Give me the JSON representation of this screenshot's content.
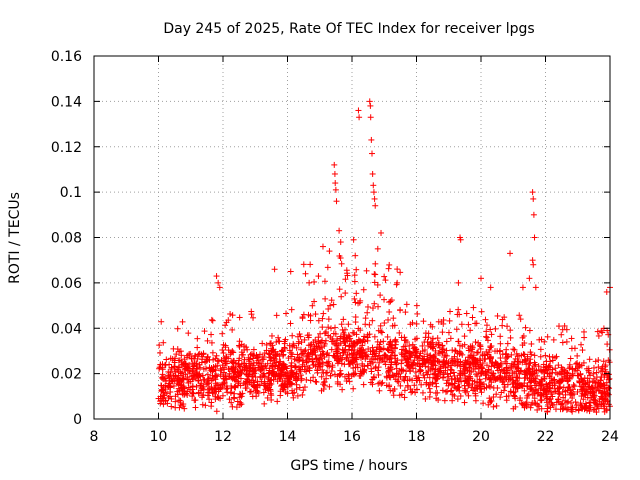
{
  "chart_data": {
    "type": "scatter",
    "title": "Day 245 of 2025, Rate Of TEC Index for receiver lpgs",
    "xlabel": "GPS time / hours",
    "ylabel": "ROTI / TECUs",
    "xlim": [
      8,
      24
    ],
    "ylim": [
      0,
      0.16
    ],
    "x_ticks": [
      "8",
      "10",
      "12",
      "14",
      "16",
      "18",
      "20",
      "22",
      "24"
    ],
    "y_ticks": [
      "0",
      "0.02",
      "0.04",
      "0.06",
      "0.08",
      "0.1",
      "0.12",
      "0.14",
      "0.16"
    ],
    "grid": true,
    "marker": "+",
    "color": "#ff0000",
    "series": [
      {
        "name": "ROTI",
        "baseline": [
          [
            10.0,
            0.016
          ],
          [
            11.0,
            0.017
          ],
          [
            12.0,
            0.018
          ],
          [
            13.0,
            0.02
          ],
          [
            14.0,
            0.022
          ],
          [
            15.0,
            0.026
          ],
          [
            16.0,
            0.028
          ],
          [
            17.0,
            0.025
          ],
          [
            18.0,
            0.023
          ],
          [
            19.0,
            0.022
          ],
          [
            20.0,
            0.021
          ],
          [
            21.0,
            0.019
          ],
          [
            22.0,
            0.015
          ],
          [
            23.0,
            0.012
          ],
          [
            24.0,
            0.012
          ]
        ],
        "spikes": [
          [
            15.45,
            0.112
          ],
          [
            15.47,
            0.108
          ],
          [
            15.5,
            0.101
          ],
          [
            15.52,
            0.096
          ],
          [
            15.48,
            0.104
          ],
          [
            15.6,
            0.083
          ],
          [
            15.65,
            0.078
          ],
          [
            16.2,
            0.136
          ],
          [
            16.22,
            0.133
          ],
          [
            16.55,
            0.14
          ],
          [
            16.57,
            0.138
          ],
          [
            16.58,
            0.133
          ],
          [
            16.6,
            0.123
          ],
          [
            16.62,
            0.117
          ],
          [
            16.64,
            0.108
          ],
          [
            16.66,
            0.103
          ],
          [
            16.68,
            0.1
          ],
          [
            16.7,
            0.097
          ],
          [
            16.72,
            0.094
          ],
          [
            16.9,
            0.082
          ],
          [
            19.35,
            0.08
          ],
          [
            19.37,
            0.079
          ],
          [
            21.6,
            0.1
          ],
          [
            21.62,
            0.097
          ],
          [
            21.64,
            0.09
          ],
          [
            21.66,
            0.08
          ],
          [
            21.6,
            0.07
          ],
          [
            21.62,
            0.068
          ],
          [
            11.8,
            0.063
          ],
          [
            11.85,
            0.06
          ],
          [
            11.9,
            0.058
          ],
          [
            13.6,
            0.066
          ],
          [
            14.1,
            0.065
          ],
          [
            15.1,
            0.076
          ],
          [
            15.3,
            0.074
          ],
          [
            16.05,
            0.079
          ],
          [
            16.1,
            0.072
          ],
          [
            16.8,
            0.075
          ],
          [
            17.4,
            0.06
          ],
          [
            19.3,
            0.06
          ],
          [
            20.0,
            0.062
          ],
          [
            20.3,
            0.058
          ],
          [
            20.9,
            0.073
          ],
          [
            21.3,
            0.058
          ],
          [
            21.5,
            0.062
          ],
          [
            21.7,
            0.058
          ],
          [
            24.0,
            0.058
          ],
          [
            23.9,
            0.056
          ]
        ]
      }
    ]
  }
}
